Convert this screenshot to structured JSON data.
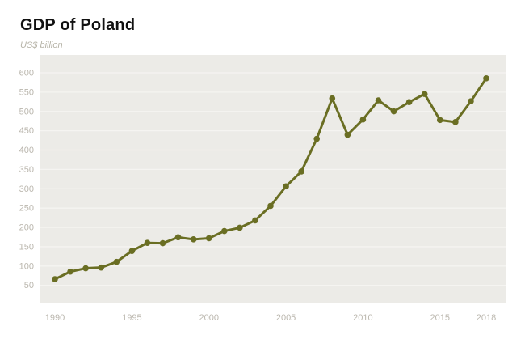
{
  "header": {
    "title": "GDP of Poland",
    "subtitle": "US$ billion"
  },
  "chart_data": {
    "type": "line",
    "title": "GDP of Poland",
    "ylabel": "US$ billion",
    "xlabel": "",
    "series": [
      {
        "name": "GDP of Poland (US$ billion)",
        "x": [
          1990,
          1991,
          1992,
          1993,
          1994,
          1995,
          1996,
          1997,
          1998,
          1999,
          2000,
          2001,
          2002,
          2003,
          2004,
          2005,
          2006,
          2007,
          2008,
          2009,
          2010,
          2011,
          2012,
          2013,
          2014,
          2015,
          2016,
          2017,
          2018
        ],
        "values": [
          66.0,
          85.5,
          94.3,
          96.1,
          110.8,
          139.1,
          159.9,
          159.1,
          174.3,
          169.0,
          171.9,
          190.5,
          199.2,
          218.0,
          255.6,
          306.2,
          344.7,
          429.3,
          533.8,
          439.7,
          479.2,
          528.8,
          500.3,
          524.3,
          545.3,
          477.8,
          472.6,
          526.4,
          585.7
        ]
      }
    ],
    "xticks": [
      1990,
      1995,
      2000,
      2005,
      2010,
      2015,
      2018
    ],
    "yticks": [
      50,
      100,
      150,
      200,
      250,
      300,
      350,
      400,
      450,
      500,
      550,
      600
    ],
    "xlim": [
      1990,
      2018
    ],
    "ylim": [
      50,
      600
    ],
    "grid": "horizontal",
    "legend_position": "none",
    "marker": "circle",
    "colors": {
      "line": "#6A6E23",
      "marker": "#6A6E23",
      "plot_background": "#ECEBE7",
      "gridline": "#F5F4F1",
      "tick_label": "#BBB7AE",
      "title": "#111111",
      "subtitle": "#B6B3A7"
    }
  }
}
